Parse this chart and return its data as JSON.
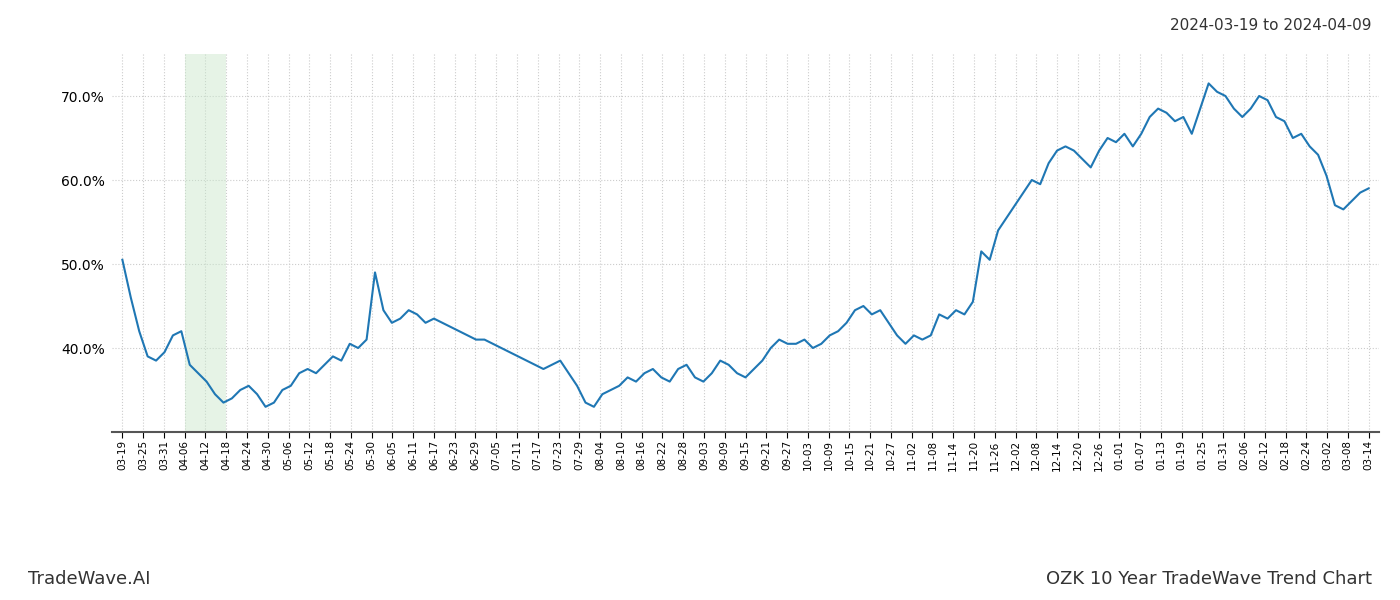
{
  "title_right": "2024-03-19 to 2024-04-09",
  "footer_left": "TradeWave.AI",
  "footer_right": "OZK 10 Year TradeWave Trend Chart",
  "line_color": "#1f77b4",
  "line_width": 1.5,
  "shaded_region_color": "#c8e6c9",
  "shaded_region_alpha": 0.45,
  "background_color": "#ffffff",
  "grid_color": "#cccccc",
  "grid_style": ":",
  "ylim": [
    30,
    75
  ],
  "yticks": [
    40,
    50,
    60,
    70
  ],
  "x_labels": [
    "03-19",
    "03-25",
    "03-31",
    "04-06",
    "04-12",
    "04-18",
    "04-24",
    "04-30",
    "05-06",
    "05-12",
    "05-18",
    "05-24",
    "05-30",
    "06-05",
    "06-11",
    "06-17",
    "06-23",
    "06-29",
    "07-05",
    "07-11",
    "07-17",
    "07-23",
    "07-29",
    "08-04",
    "08-10",
    "08-16",
    "08-22",
    "08-28",
    "09-03",
    "09-09",
    "09-15",
    "09-21",
    "09-27",
    "10-03",
    "10-09",
    "10-15",
    "10-21",
    "10-27",
    "11-02",
    "11-08",
    "11-14",
    "11-20",
    "11-26",
    "12-02",
    "12-08",
    "12-14",
    "12-20",
    "12-26",
    "01-01",
    "01-07",
    "01-13",
    "01-19",
    "01-25",
    "01-31",
    "02-06",
    "02-12",
    "02-18",
    "02-24",
    "03-02",
    "03-08",
    "03-14"
  ],
  "shaded_x_start_label": "04-06",
  "shaded_x_end_label": "04-18",
  "y_values": [
    50.5,
    46.0,
    42.0,
    39.0,
    38.5,
    39.5,
    41.5,
    42.0,
    38.0,
    37.0,
    36.0,
    34.5,
    33.5,
    34.0,
    35.0,
    35.5,
    34.5,
    33.0,
    33.5,
    35.0,
    35.5,
    37.0,
    37.5,
    37.0,
    38.0,
    39.0,
    38.5,
    40.5,
    40.0,
    41.0,
    49.0,
    44.5,
    43.0,
    43.5,
    44.5,
    44.0,
    43.0,
    43.5,
    43.0,
    42.5,
    42.0,
    41.5,
    41.0,
    41.0,
    40.5,
    40.0,
    39.5,
    39.0,
    38.5,
    38.0,
    37.5,
    38.0,
    38.5,
    37.0,
    35.5,
    33.5,
    33.0,
    34.5,
    35.0,
    35.5,
    36.5,
    36.0,
    37.0,
    37.5,
    36.5,
    36.0,
    37.5,
    38.0,
    36.5,
    36.0,
    37.0,
    38.5,
    38.0,
    37.0,
    36.5,
    37.5,
    38.5,
    40.0,
    41.0,
    40.5,
    40.5,
    41.0,
    40.0,
    40.5,
    41.5,
    42.0,
    43.0,
    44.5,
    45.0,
    44.0,
    44.5,
    43.0,
    41.5,
    40.5,
    41.5,
    41.0,
    41.5,
    44.0,
    43.5,
    44.5,
    44.0,
    45.5,
    51.5,
    50.5,
    54.0,
    55.5,
    57.0,
    58.5,
    60.0,
    59.5,
    62.0,
    63.5,
    64.0,
    63.5,
    62.5,
    61.5,
    63.5,
    65.0,
    64.5,
    65.5,
    64.0,
    65.5,
    67.5,
    68.5,
    68.0,
    67.0,
    67.5,
    65.5,
    68.5,
    71.5,
    70.5,
    70.0,
    68.5,
    67.5,
    68.5,
    70.0,
    69.5,
    67.5,
    67.0,
    65.0,
    65.5,
    64.0,
    63.0,
    60.5,
    57.0,
    56.5,
    57.5,
    58.5,
    59.0
  ]
}
